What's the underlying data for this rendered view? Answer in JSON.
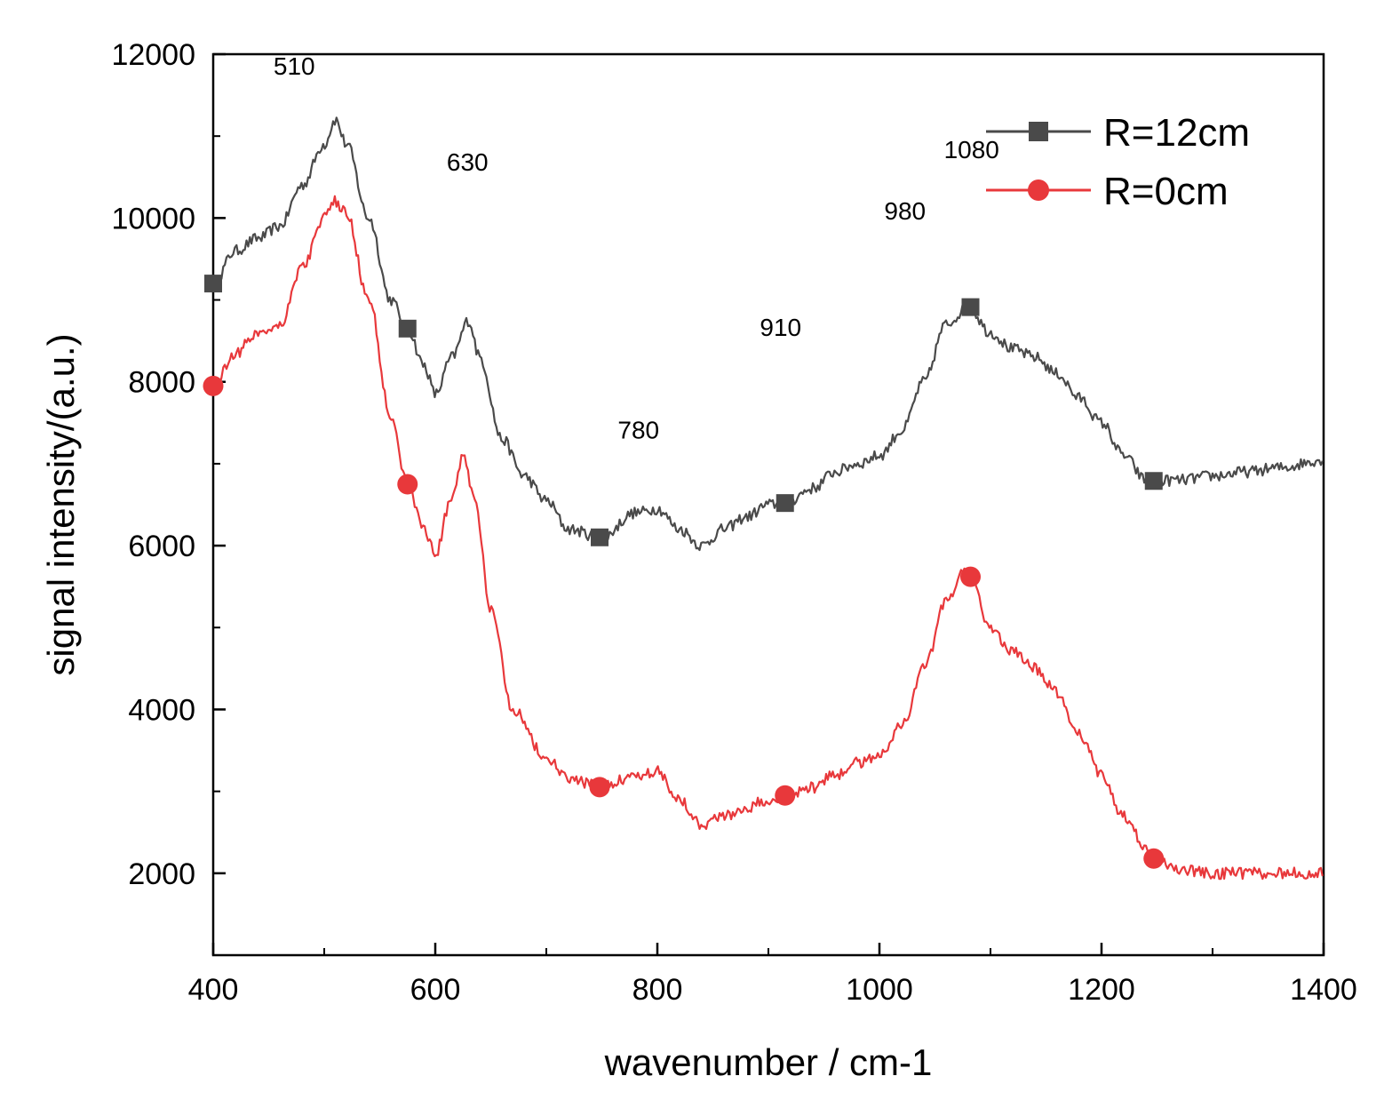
{
  "chart_data": {
    "type": "line",
    "title": "",
    "xlabel": "wavenumber / cm-1",
    "ylabel": "signal intensity/(a.u.)",
    "xlim": [
      400,
      1400
    ],
    "ylim": [
      1000,
      12000
    ],
    "xticks": [
      400,
      600,
      800,
      1000,
      1200,
      1400
    ],
    "yticks": [
      2000,
      4000,
      6000,
      8000,
      10000,
      12000
    ],
    "xtick_labels": [
      "400",
      "600",
      "800",
      "1000",
      "1200",
      "1400"
    ],
    "ytick_labels": [
      "2000",
      "4000",
      "6000",
      "8000",
      "10000",
      "12000"
    ],
    "legend_position": "top-right",
    "series": [
      {
        "name": "R=12cm",
        "color": "#4a4a4a",
        "marker": "square",
        "x": [
          400,
          420,
          440,
          460,
          480,
          500,
          510,
          520,
          540,
          560,
          575,
          590,
          600,
          615,
          630,
          640,
          660,
          680,
          700,
          720,
          750,
          780,
          800,
          820,
          840,
          860,
          880,
          900,
          915,
          940,
          960,
          980,
          1000,
          1020,
          1040,
          1060,
          1080,
          1100,
          1120,
          1140,
          1160,
          1180,
          1200,
          1220,
          1240,
          1247,
          1270,
          1300,
          1330,
          1360,
          1400
        ],
        "values": [
          9200,
          9600,
          9750,
          9900,
          10400,
          10900,
          11200,
          10900,
          10000,
          9000,
          8650,
          8200,
          7850,
          8300,
          8750,
          8300,
          7300,
          6850,
          6550,
          6200,
          6100,
          6400,
          6450,
          6200,
          6000,
          6200,
          6350,
          6500,
          6520,
          6700,
          6900,
          7000,
          7100,
          7400,
          8000,
          8700,
          8920,
          8600,
          8400,
          8300,
          8100,
          7800,
          7500,
          7100,
          6800,
          6790,
          6800,
          6850,
          6900,
          6950,
          7050
        ]
      },
      {
        "name": "R=0cm",
        "color": "#e8383b",
        "marker": "circle",
        "x": [
          400,
          420,
          440,
          460,
          480,
          500,
          510,
          520,
          540,
          560,
          575,
          590,
          600,
          615,
          625,
          635,
          650,
          670,
          700,
          720,
          750,
          780,
          800,
          820,
          840,
          860,
          880,
          900,
          915,
          940,
          960,
          980,
          1000,
          1020,
          1040,
          1060,
          1075,
          1082,
          1100,
          1120,
          1140,
          1160,
          1180,
          1200,
          1220,
          1240,
          1247,
          1270,
          1300,
          1330,
          1360,
          1400
        ],
        "values": [
          7950,
          8350,
          8600,
          8700,
          9400,
          10000,
          10200,
          10050,
          9000,
          7600,
          6750,
          6200,
          5900,
          6600,
          7100,
          6600,
          5200,
          4000,
          3400,
          3150,
          3050,
          3200,
          3250,
          2900,
          2600,
          2700,
          2800,
          2900,
          2950,
          3050,
          3200,
          3350,
          3450,
          3800,
          4500,
          5300,
          5700,
          5620,
          5000,
          4700,
          4500,
          4200,
          3700,
          3200,
          2700,
          2300,
          2180,
          2050,
          2000,
          2000,
          2000,
          2000
        ]
      }
    ],
    "marker_x": {
      "R=12cm": [
        400,
        575,
        748,
        915,
        1082,
        1247
      ],
      "R=0cm": [
        400,
        575,
        748,
        915,
        1082,
        1247
      ]
    },
    "annotations": [
      {
        "text": "510",
        "x": 473,
        "y": 11750
      },
      {
        "text": "630",
        "x": 629,
        "y": 10580
      },
      {
        "text": "780",
        "x": 783,
        "y": 7310
      },
      {
        "text": "910",
        "x": 911,
        "y": 8560
      },
      {
        "text": "980",
        "x": 1023,
        "y": 9980
      },
      {
        "text": "1080",
        "x": 1083,
        "y": 10730
      }
    ]
  }
}
